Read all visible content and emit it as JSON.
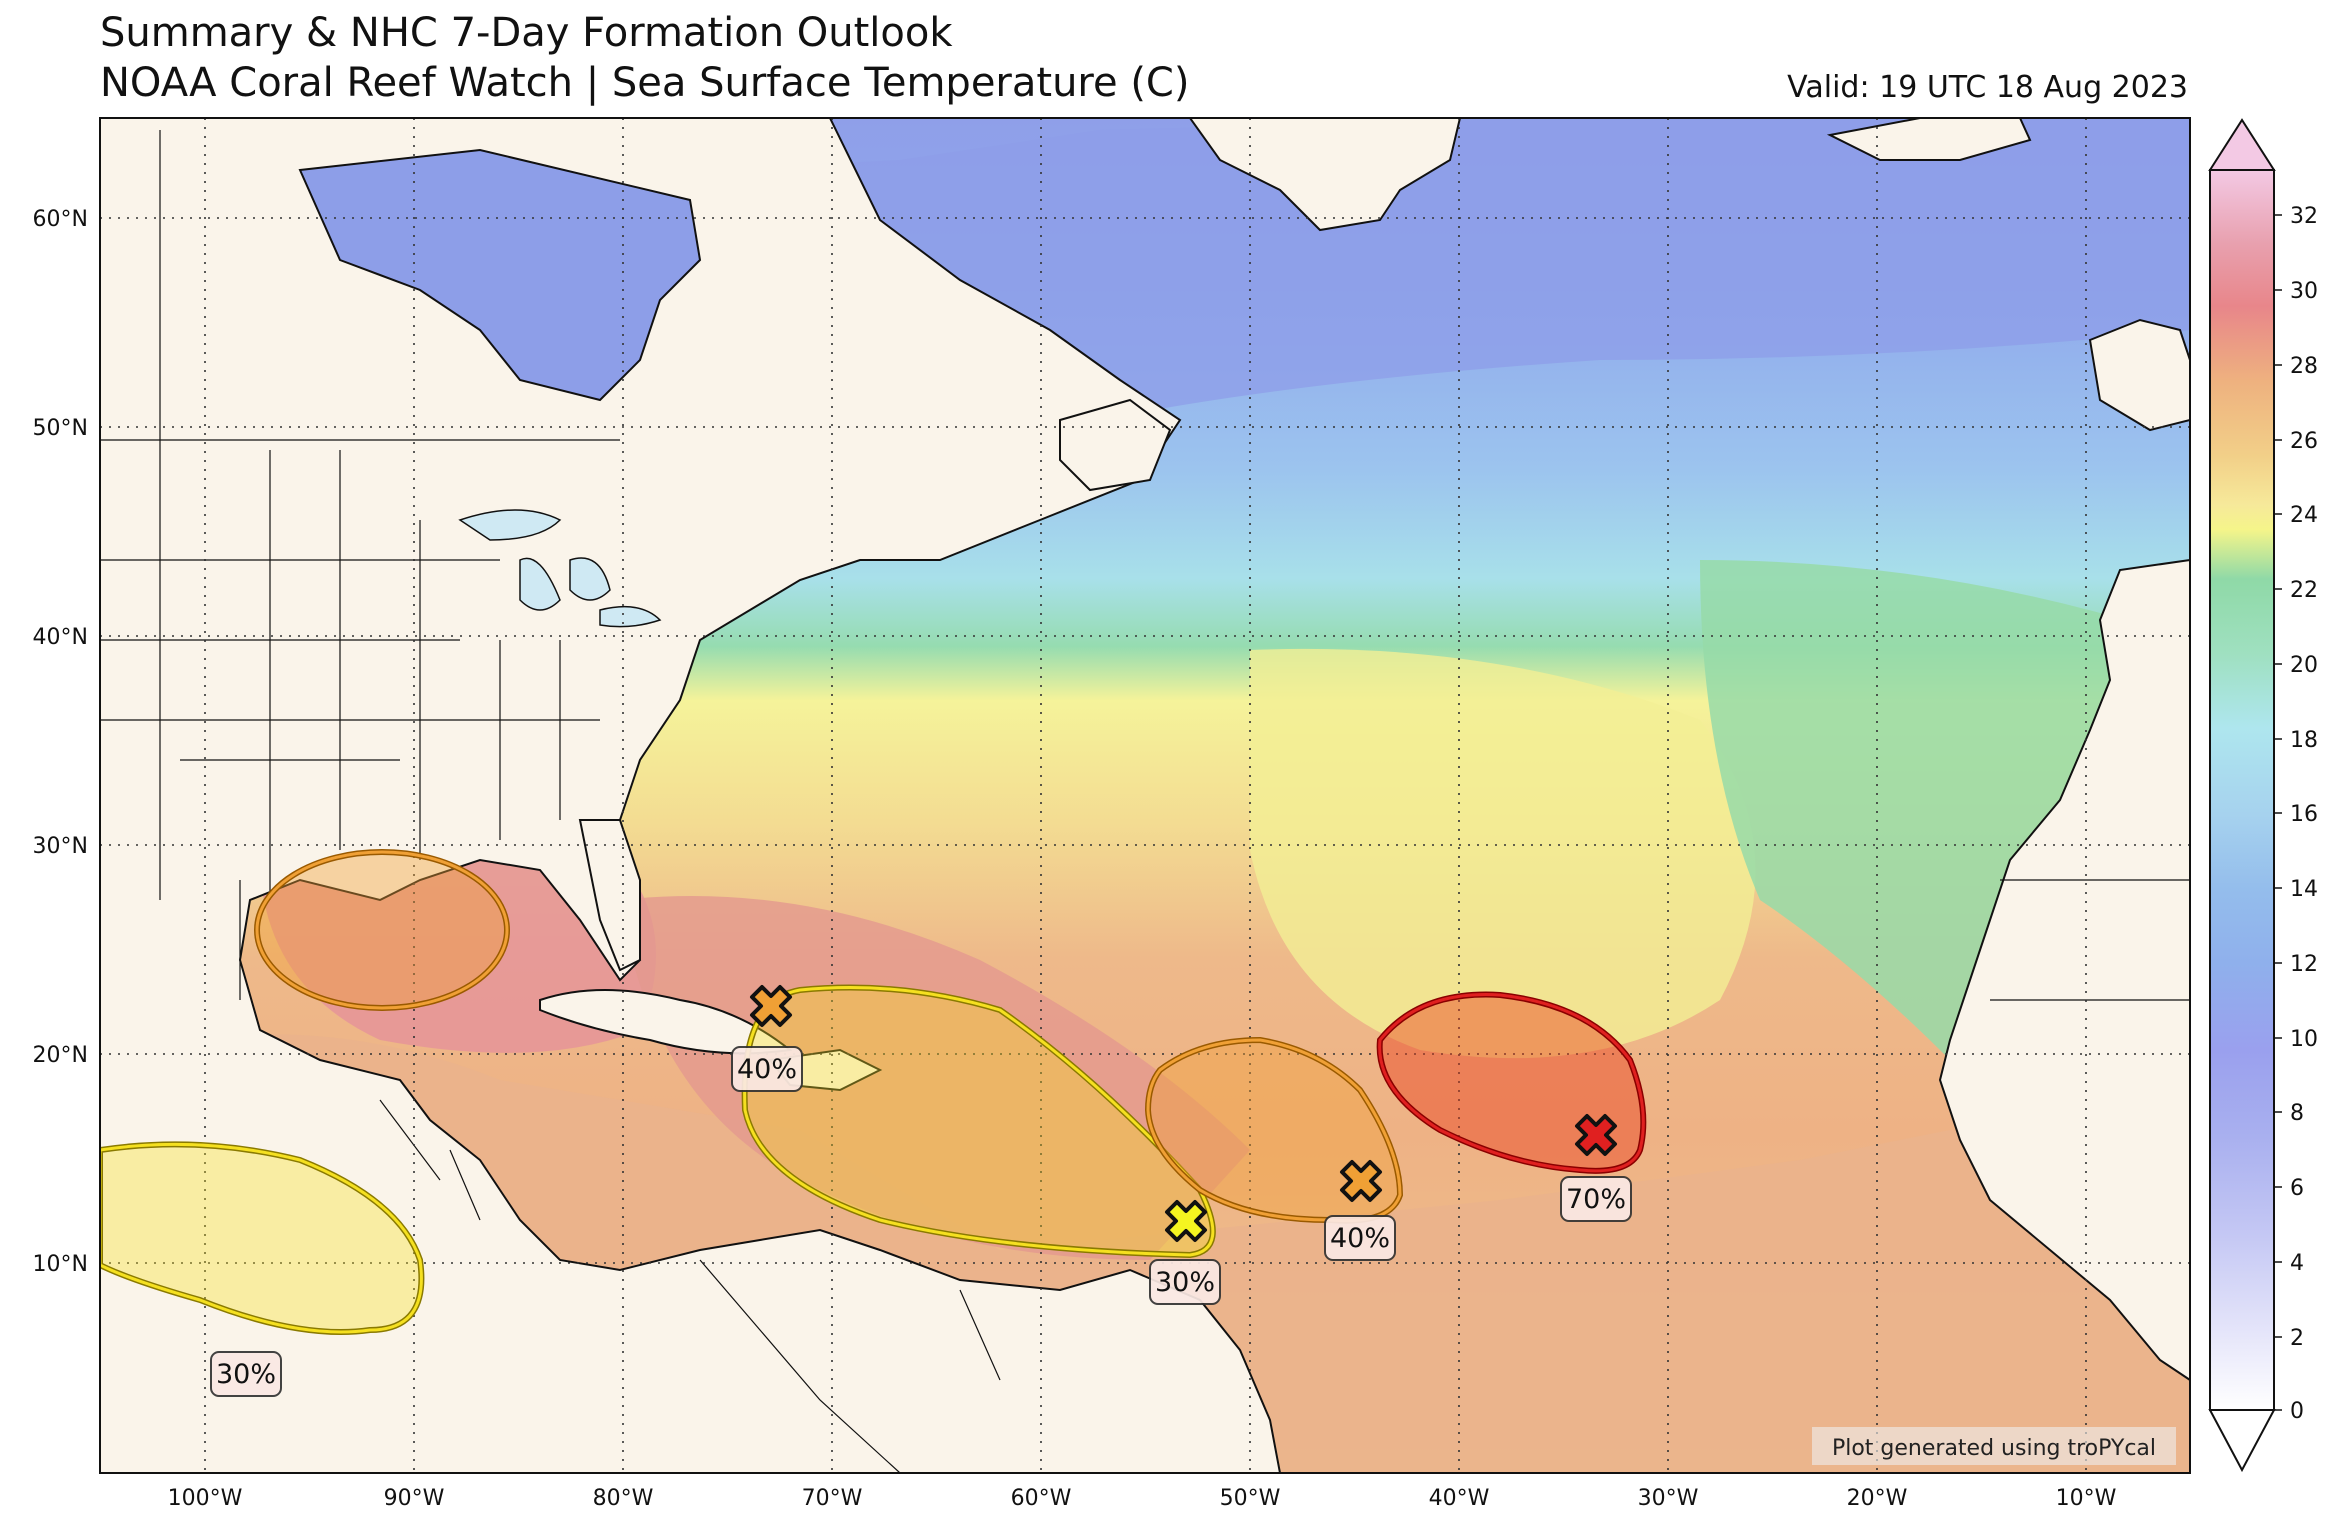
{
  "title": {
    "line1": "Summary & NHC 7-Day Formation Outlook",
    "line2": "NOAA Coral Reef Watch | Sea Surface Temperature (C)",
    "valid": "Valid: 19 UTC 18 Aug 2023"
  },
  "map": {
    "lat_labels": [
      "60°N",
      "50°N",
      "40°N",
      "30°N",
      "20°N",
      "10°N"
    ],
    "lon_labels": [
      "100°W",
      "90°W",
      "80°W",
      "70°W",
      "60°W",
      "50°W",
      "40°W",
      "30°W",
      "20°W",
      "10°W"
    ],
    "credit": "Plot generated using troPYcal"
  },
  "colorbar": {
    "label_values": [
      "32",
      "30",
      "28",
      "26",
      "24",
      "22",
      "20",
      "18",
      "16",
      "14",
      "12",
      "10",
      "8",
      "6",
      "4",
      "2",
      "0"
    ],
    "colors": {
      "warm_peak": "#f3c9e4",
      "hot": "#e8868a",
      "orange": "#eeb17f",
      "yellow": "#f5f39a",
      "green": "#8fd9a7",
      "cyan": "#aee6ee",
      "blue": "#8fb2ec",
      "violet": "#9aa0ee"
    }
  },
  "outlooks": [
    {
      "id": "gulf",
      "label": "",
      "color": "#f0a035",
      "probability_category": "medium"
    },
    {
      "id": "hispaniola",
      "label": "40%",
      "color": "#f0a035"
    },
    {
      "id": "east-pacific",
      "label": "30%",
      "color": "#f5e020"
    },
    {
      "id": "caribbean-east",
      "label": "30%",
      "color": "#f5e020"
    },
    {
      "id": "central-atlantic",
      "label": "40%",
      "color": "#f0a035"
    },
    {
      "id": "eastern-atlantic",
      "label": "70%",
      "color": "#e02020"
    }
  ]
}
